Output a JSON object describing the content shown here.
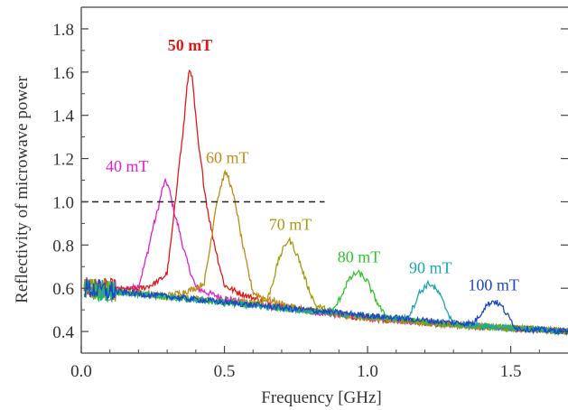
{
  "chart_data": {
    "type": "line",
    "title": "",
    "xlabel": "Frequency [GHz]",
    "ylabel": "Reflectivity of microwave power",
    "xlim": [
      0.0,
      1.7
    ],
    "ylim": [
      0.3,
      1.9
    ],
    "xticks": [
      {
        "value": 0.0,
        "label": "0.0"
      },
      {
        "value": 0.5,
        "label": "0.5"
      },
      {
        "value": 1.0,
        "label": "1.0"
      },
      {
        "value": 1.5,
        "label": "1.5"
      }
    ],
    "yticks": [
      {
        "value": 0.4,
        "label": "0.4"
      },
      {
        "value": 0.6,
        "label": "0.6"
      },
      {
        "value": 0.8,
        "label": "0.8"
      },
      {
        "value": 1.0,
        "label": "1.0"
      },
      {
        "value": 1.2,
        "label": "1.2"
      },
      {
        "value": 1.4,
        "label": "1.4"
      },
      {
        "value": 1.6,
        "label": "1.6"
      },
      {
        "value": 1.8,
        "label": "1.8"
      }
    ],
    "reference_line": {
      "y": 1.0,
      "x_range": [
        0.0,
        0.85
      ],
      "style": "dashed"
    },
    "grid": false,
    "series": [
      {
        "name": "40 mT",
        "color": "#e020d0",
        "bold": false,
        "peak_x": 0.295,
        "peak_y": 1.09,
        "width": 0.036,
        "label_x": 0.16,
        "label_y": 1.14,
        "x": [
          0.0,
          0.1,
          0.2,
          0.25,
          0.295,
          0.34,
          0.4,
          0.6,
          0.8,
          1.0,
          1.2,
          1.4,
          1.6,
          1.7
        ],
        "y": [
          0.6,
          0.58,
          0.57,
          0.75,
          1.09,
          0.75,
          0.57,
          0.52,
          0.49,
          0.46,
          0.44,
          0.42,
          0.41,
          0.4
        ]
      },
      {
        "name": "50 mT",
        "color": "#dd1a1a",
        "bold": true,
        "peak_x": 0.38,
        "peak_y": 1.61,
        "width": 0.028,
        "label_x": 0.38,
        "label_y": 1.7,
        "x": [
          0.0,
          0.2,
          0.3,
          0.34,
          0.38,
          0.42,
          0.5,
          0.7,
          1.0,
          1.3,
          1.7
        ],
        "y": [
          0.6,
          0.58,
          0.6,
          0.95,
          1.61,
          0.95,
          0.58,
          0.51,
          0.46,
          0.43,
          0.4
        ]
      },
      {
        "name": "60 mT",
        "color": "#c08a18",
        "bold": false,
        "peak_x": 0.505,
        "peak_y": 1.13,
        "width": 0.034,
        "label_x": 0.51,
        "label_y": 1.18,
        "x": [
          0.0,
          0.3,
          0.43,
          0.47,
          0.505,
          0.54,
          0.6,
          0.8,
          1.0,
          1.3,
          1.7
        ],
        "y": [
          0.6,
          0.56,
          0.58,
          0.85,
          1.13,
          0.85,
          0.55,
          0.49,
          0.46,
          0.43,
          0.4
        ]
      },
      {
        "name": "70 mT",
        "color": "#a89a10",
        "bold": false,
        "peak_x": 0.725,
        "peak_y": 0.82,
        "width": 0.034,
        "label_x": 0.73,
        "label_y": 0.87,
        "x": [
          0.0,
          0.4,
          0.65,
          0.69,
          0.725,
          0.76,
          0.82,
          1.0,
          1.3,
          1.7
        ],
        "y": [
          0.6,
          0.55,
          0.52,
          0.66,
          0.82,
          0.66,
          0.5,
          0.46,
          0.43,
          0.4
        ]
      },
      {
        "name": "80 mT",
        "color": "#2ec42e",
        "bold": false,
        "peak_x": 0.965,
        "peak_y": 0.67,
        "width": 0.04,
        "label_x": 0.97,
        "label_y": 0.72,
        "x": [
          0.0,
          0.5,
          0.88,
          0.93,
          0.965,
          1.0,
          1.06,
          1.3,
          1.7
        ],
        "y": [
          0.6,
          0.53,
          0.48,
          0.58,
          0.67,
          0.58,
          0.46,
          0.43,
          0.4
        ]
      },
      {
        "name": "90 mT",
        "color": "#1aa6a6",
        "bold": false,
        "peak_x": 1.215,
        "peak_y": 0.62,
        "width": 0.033,
        "label_x": 1.22,
        "label_y": 0.67,
        "x": [
          0.0,
          0.6,
          1.14,
          1.18,
          1.215,
          1.25,
          1.3,
          1.7
        ],
        "y": [
          0.6,
          0.52,
          0.45,
          0.54,
          0.62,
          0.54,
          0.43,
          0.4
        ]
      },
      {
        "name": "100 mT",
        "color": "#1f45c8",
        "bold": false,
        "peak_x": 1.44,
        "peak_y": 0.54,
        "width": 0.03,
        "label_x": 1.44,
        "label_y": 0.59,
        "x": [
          0.0,
          0.7,
          1.37,
          1.41,
          1.44,
          1.47,
          1.52,
          1.7
        ],
        "y": [
          0.6,
          0.51,
          0.43,
          0.49,
          0.54,
          0.49,
          0.41,
          0.4
        ]
      }
    ]
  }
}
